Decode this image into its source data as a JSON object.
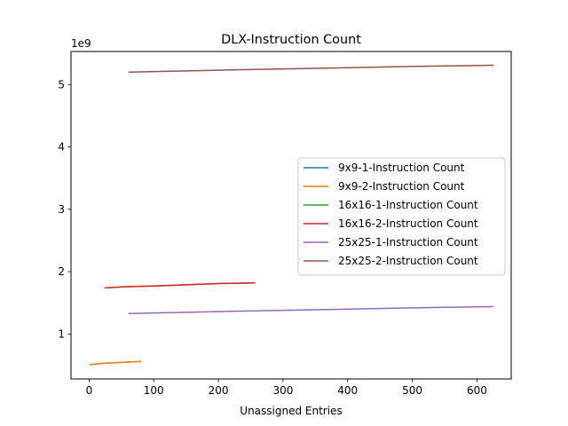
{
  "chart_data": {
    "type": "line",
    "title": "DLX-Instruction Count",
    "xlabel": "Unassigned Entries",
    "ylabel": "",
    "y_offset_label": "1e9",
    "xlim": [
      -28,
      653
    ],
    "ylim": [
      0.28,
      5.53
    ],
    "x_ticks": [
      0,
      100,
      200,
      300,
      400,
      500,
      600
    ],
    "x_tick_labels": [
      "0",
      "100",
      "200",
      "300",
      "400",
      "500",
      "600"
    ],
    "y_ticks": [
      1,
      2,
      3,
      4,
      5
    ],
    "y_tick_labels": [
      "1",
      "2",
      "3",
      "4",
      "5"
    ],
    "grid": false,
    "legend_position": "center-right",
    "series": [
      {
        "name": "9x9-1-Instruction Count",
        "color": "#1f77b4",
        "x": [
          2,
          20,
          40,
          60,
          80
        ],
        "y": [
          0.51,
          0.53,
          0.54,
          0.55,
          0.56
        ]
      },
      {
        "name": "9x9-2-Instruction Count",
        "color": "#ff7f0e",
        "x": [
          2,
          20,
          40,
          60,
          80
        ],
        "y": [
          0.51,
          0.53,
          0.54,
          0.55,
          0.56
        ]
      },
      {
        "name": "16x16-1-Instruction Count",
        "color": "#2ca02c",
        "x": [
          25,
          60,
          100,
          150,
          200,
          256
        ],
        "y": [
          1.74,
          1.76,
          1.77,
          1.79,
          1.81,
          1.82
        ]
      },
      {
        "name": "16x16-2-Instruction Count",
        "color": "#d62728",
        "x": [
          25,
          60,
          100,
          150,
          200,
          256
        ],
        "y": [
          1.74,
          1.76,
          1.77,
          1.79,
          1.81,
          1.82
        ]
      },
      {
        "name": "25x25-1-Instruction Count",
        "color": "#9467bd",
        "x": [
          62,
          200,
          350,
          500,
          625
        ],
        "y": [
          1.33,
          1.36,
          1.39,
          1.42,
          1.44
        ]
      },
      {
        "name": "25x25-2-Instruction Count",
        "color": "#8c564b",
        "x": [
          62,
          200,
          350,
          500,
          625
        ],
        "y": [
          5.2,
          5.23,
          5.26,
          5.29,
          5.31
        ]
      }
    ]
  }
}
